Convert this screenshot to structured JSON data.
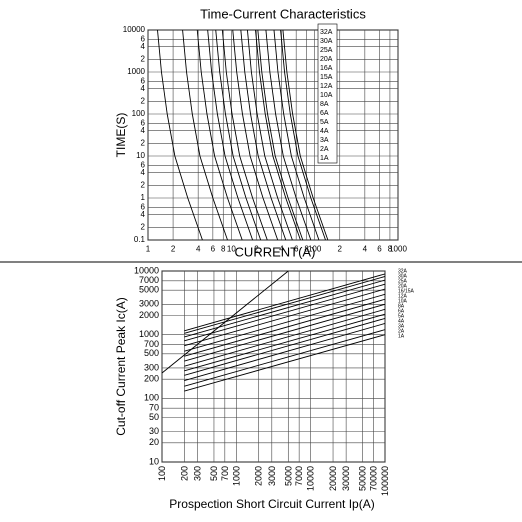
{
  "chart_data": [
    {
      "type": "line",
      "title": "Time-Current Characteristics",
      "x_label": "CURRENT(A)",
      "y_label": "TIME(S)",
      "log_x": true,
      "log_y": true,
      "grid": true,
      "xlim": [
        1,
        1000
      ],
      "ylim": [
        0.1,
        10000
      ],
      "xticks": [
        1,
        2,
        4,
        6,
        8,
        10,
        {
          "value": 20,
          "label": "2"
        },
        {
          "value": 40,
          "label": "4"
        },
        {
          "value": 60,
          "label": "6"
        },
        {
          "value": 80,
          "label": "8"
        },
        100,
        {
          "value": 200,
          "label": "2"
        },
        {
          "value": 400,
          "label": "4"
        },
        {
          "value": 600,
          "label": "6"
        },
        {
          "value": 800,
          "label": "8"
        },
        1000
      ],
      "yticks": [
        0.1,
        {
          "value": 0.2,
          "label": "2"
        },
        {
          "value": 0.4,
          "label": "4"
        },
        {
          "value": 0.6,
          "label": "6"
        },
        1,
        2,
        4,
        6,
        10,
        {
          "value": 20,
          "label": "2"
        },
        {
          "value": 40,
          "label": "4"
        },
        {
          "value": 60,
          "label": "6"
        },
        100,
        {
          "value": 200,
          "label": "2"
        },
        {
          "value": 400,
          "label": "4"
        },
        {
          "value": 600,
          "label": "6"
        },
        1000,
        {
          "value": 2000,
          "label": "2"
        },
        {
          "value": 4000,
          "label": "4"
        },
        {
          "value": 6000,
          "label": "6"
        },
        10000
      ],
      "series": [
        {
          "name": "1A",
          "color": "#000000",
          "x": [
            1.3,
            1.45,
            1.7,
            2.1,
            3,
            4.5
          ],
          "values": [
            10000,
            1000,
            100,
            10,
            1,
            0.1
          ]
        },
        {
          "name": "2A",
          "color": "#000000",
          "x": [
            2.6,
            2.9,
            3.4,
            4.2,
            6,
            9
          ],
          "values": [
            10000,
            1000,
            100,
            10,
            1,
            0.1
          ]
        },
        {
          "name": "3A",
          "color": "#000000",
          "x": [
            3.9,
            4.35,
            5.1,
            6.3,
            9,
            13.5
          ],
          "values": [
            10000,
            1000,
            100,
            10,
            1,
            0.1
          ]
        },
        {
          "name": "4A",
          "color": "#000000",
          "x": [
            5.2,
            5.8,
            6.8,
            8.4,
            12,
            18
          ],
          "values": [
            10000,
            1000,
            100,
            10,
            1,
            0.1
          ]
        },
        {
          "name": "5A",
          "color": "#000000",
          "x": [
            6.5,
            7.25,
            8.5,
            10.5,
            15,
            22.5
          ],
          "values": [
            10000,
            1000,
            100,
            10,
            1,
            0.1
          ]
        },
        {
          "name": "6A",
          "color": "#000000",
          "x": [
            7.8,
            8.7,
            10.2,
            12.6,
            18,
            27
          ],
          "values": [
            10000,
            1000,
            100,
            10,
            1,
            0.1
          ]
        },
        {
          "name": "8A",
          "color": "#000000",
          "x": [
            10.4,
            11.6,
            13.6,
            16.8,
            24,
            36
          ],
          "values": [
            10000,
            1000,
            100,
            10,
            1,
            0.1
          ]
        },
        {
          "name": "10A",
          "color": "#000000",
          "x": [
            13,
            14.5,
            17,
            21,
            30,
            45
          ],
          "values": [
            10000,
            1000,
            100,
            10,
            1,
            0.1
          ]
        },
        {
          "name": "12A",
          "color": "#000000",
          "x": [
            15.6,
            17.4,
            20.4,
            25.2,
            36,
            54
          ],
          "values": [
            10000,
            1000,
            100,
            10,
            1,
            0.1
          ]
        },
        {
          "name": "15A",
          "color": "#000000",
          "x": [
            19.5,
            21.75,
            25.5,
            31.5,
            45,
            67.5
          ],
          "values": [
            10000,
            1000,
            100,
            10,
            1,
            0.1
          ]
        },
        {
          "name": "16A",
          "color": "#000000",
          "x": [
            20.8,
            23.2,
            27.2,
            33.6,
            48,
            72
          ],
          "values": [
            10000,
            1000,
            100,
            10,
            1,
            0.1
          ]
        },
        {
          "name": "20A",
          "color": "#000000",
          "x": [
            26,
            29,
            34,
            42,
            60,
            90
          ],
          "values": [
            10000,
            1000,
            100,
            10,
            1,
            0.1
          ]
        },
        {
          "name": "25A",
          "color": "#000000",
          "x": [
            32.5,
            36.25,
            42.5,
            52.5,
            75,
            112.5
          ],
          "values": [
            10000,
            1000,
            100,
            10,
            1,
            0.1
          ]
        },
        {
          "name": "30A",
          "color": "#000000",
          "x": [
            39,
            43.5,
            51,
            63,
            90,
            135
          ],
          "values": [
            10000,
            1000,
            100,
            10,
            1,
            0.1
          ]
        },
        {
          "name": "32A",
          "color": "#000000",
          "x": [
            41.6,
            46.4,
            54.4,
            67.2,
            96,
            144
          ],
          "values": [
            10000,
            1000,
            100,
            10,
            1,
            0.1
          ]
        }
      ]
    },
    {
      "type": "line",
      "x_label": "Prospection Short Circuit Current Ip(A)",
      "y_label": "Cut-off Current Peak Ic(A)",
      "log_x": true,
      "log_y": true,
      "grid": true,
      "xlim": [
        100,
        100000
      ],
      "ylim": [
        10,
        10000
      ],
      "xticks": [
        100,
        200,
        300,
        500,
        700,
        1000,
        2000,
        3000,
        5000,
        7000,
        10000,
        20000,
        30000,
        50000,
        70000,
        100000
      ],
      "yticks": [
        10,
        20,
        30,
        50,
        70,
        100,
        200,
        300,
        500,
        700,
        1000,
        2000,
        3000,
        5000,
        7000,
        10000
      ],
      "series": [
        {
          "name": "32A",
          "color": "#000000",
          "x": [
            200,
            100000
          ],
          "values": [
            1150,
            9000
          ]
        },
        {
          "name": "30A",
          "color": "#000000",
          "x": [
            200,
            100000
          ],
          "values": [
            1050,
            8200
          ]
        },
        {
          "name": "25A",
          "color": "#000000",
          "x": [
            200,
            100000
          ],
          "values": [
            920,
            7200
          ]
        },
        {
          "name": "20A",
          "color": "#000000",
          "x": [
            200,
            100000
          ],
          "values": [
            800,
            6200
          ]
        },
        {
          "name": "16/15A",
          "color": "#000000",
          "x": [
            200,
            100000
          ],
          "values": [
            670,
            5200
          ]
        },
        {
          "name": "12A",
          "color": "#000000",
          "x": [
            200,
            100000
          ],
          "values": [
            550,
            4300
          ]
        },
        {
          "name": "10A",
          "color": "#000000",
          "x": [
            200,
            100000
          ],
          "values": [
            460,
            3600
          ]
        },
        {
          "name": "8A",
          "color": "#000000",
          "x": [
            200,
            100000
          ],
          "values": [
            385,
            3000
          ]
        },
        {
          "name": "6A",
          "color": "#000000",
          "x": [
            200,
            100000
          ],
          "values": [
            320,
            2500
          ]
        },
        {
          "name": "5A",
          "color": "#000000",
          "x": [
            200,
            100000
          ],
          "values": [
            270,
            2100
          ]
        },
        {
          "name": "4A",
          "color": "#000000",
          "x": [
            200,
            100000
          ],
          "values": [
            230,
            1800
          ]
        },
        {
          "name": "3A",
          "color": "#000000",
          "x": [
            200,
            100000
          ],
          "values": [
            190,
            1500
          ]
        },
        {
          "name": "2A",
          "color": "#000000",
          "x": [
            200,
            100000
          ],
          "values": [
            155,
            1200
          ]
        },
        {
          "name": "1A",
          "color": "#000000",
          "x": [
            200,
            100000
          ],
          "values": [
            130,
            1000
          ]
        },
        {
          "color": "#000000",
          "x": [
            100,
            5000
          ],
          "values": [
            250,
            10000
          ]
        }
      ]
    }
  ]
}
